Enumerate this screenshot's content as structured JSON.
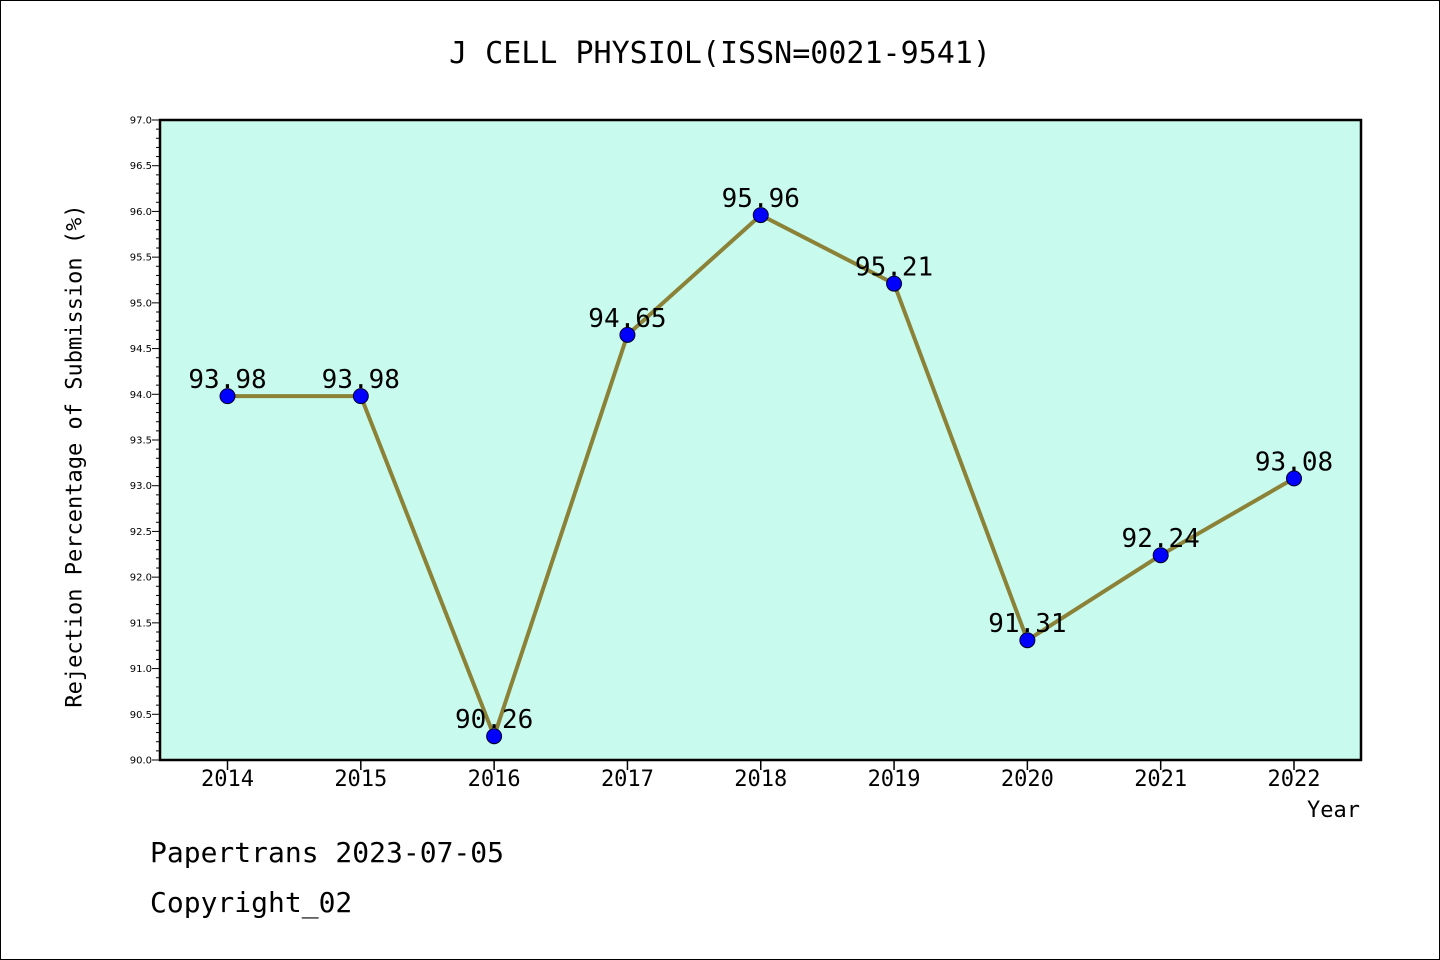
{
  "chart_data": {
    "type": "line",
    "title": "J CELL PHYSIOL(ISSN=0021-9541)",
    "xlabel": "Year",
    "ylabel": "Rejection Percentage of Submission (%)",
    "categories": [
      "2014",
      "2015",
      "2016",
      "2017",
      "2018",
      "2019",
      "2020",
      "2021",
      "2022"
    ],
    "values": [
      93.98,
      93.98,
      90.26,
      94.65,
      95.96,
      95.21,
      91.31,
      92.24,
      93.08
    ],
    "data_labels": [
      "93.98",
      "93.98",
      "90.26",
      "94.65",
      "95.96",
      "95.21",
      "91.31",
      "92.24",
      "93.08"
    ],
    "ylim": [
      90.0,
      97.0
    ],
    "yticks": [
      "90.0",
      "90.5",
      "91.0",
      "91.5",
      "92.0",
      "92.5",
      "93.0",
      "93.5",
      "94.0",
      "94.5",
      "95.0",
      "95.5",
      "96.0",
      "96.5",
      "97.0"
    ],
    "grid": false,
    "legend": "none",
    "colors": {
      "plot_background": "#c8fbee",
      "line": "#8b8238",
      "marker": "#0000ff"
    }
  },
  "footer": {
    "line1": "Papertrans 2023-07-05",
    "line2": "Copyright_02"
  }
}
